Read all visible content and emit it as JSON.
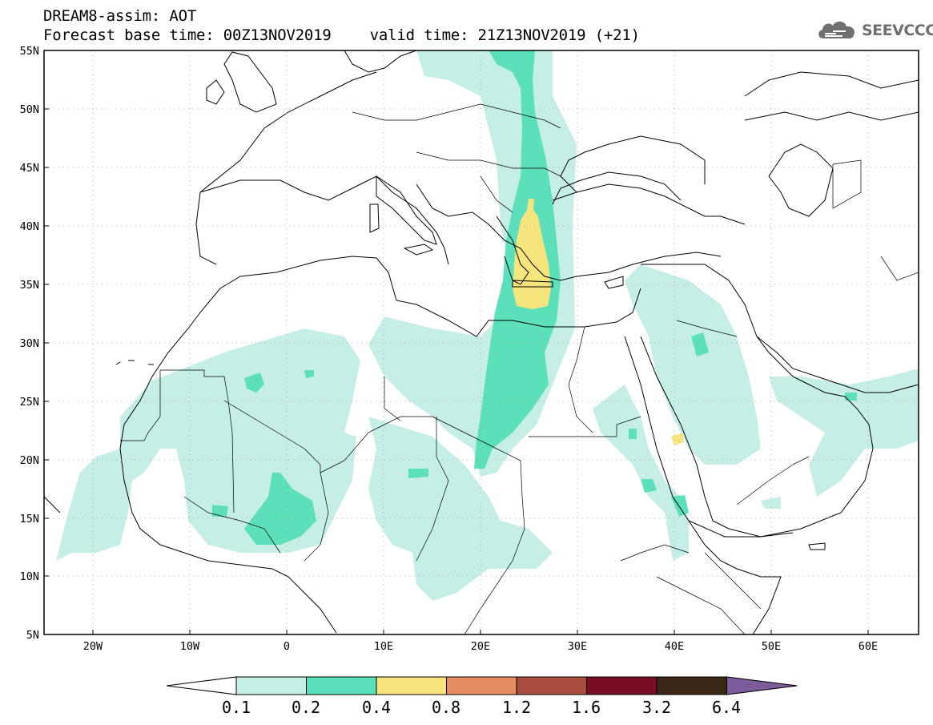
{
  "title": {
    "line1": "DREAM8-assim: AOT",
    "base_time": "Forecast base time: 00Z13NOV2019",
    "valid_time": "valid time: 21Z13NOV2019 (+21)"
  },
  "logo": {
    "icon": "cloud-icon",
    "text": "SEEVCCC"
  },
  "map": {
    "lat_labels": [
      "55N",
      "50N",
      "45N",
      "40N",
      "35N",
      "30N",
      "25N",
      "20N",
      "15N",
      "10N",
      "5N"
    ],
    "lon_labels": [
      "20W",
      "10W",
      "0",
      "10E",
      "20E",
      "30E",
      "40E",
      "50E",
      "60E"
    ],
    "lat_range": [
      5,
      55
    ],
    "lon_range": [
      -25,
      65
    ],
    "grid": "dotted"
  },
  "colorbar": {
    "levels": [
      "0.1",
      "0.2",
      "0.4",
      "0.8",
      "1.2",
      "1.6",
      "3.2",
      "6.4"
    ],
    "colors": [
      "#ffffff",
      "#c4eee6",
      "#5ce0bb",
      "#f6e47c",
      "#e68d64",
      "#a94e3f",
      "#790d25",
      "#3a2715",
      "#7c5c9a"
    ]
  },
  "overlay_colors": {
    "level1": "#c4eee6",
    "level2": "#5ce0bb",
    "level3": "#f6e47c",
    "level4": "#e68d64"
  }
}
